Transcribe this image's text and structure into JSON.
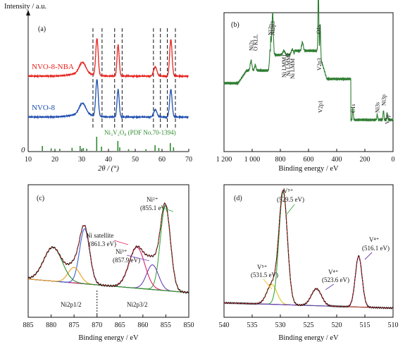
{
  "panels": {
    "a": {
      "label": "(a)",
      "ylabel": "Intensity / a.u.",
      "xlabel": "2θ / (°)",
      "zero_label": "0",
      "series_labels": [
        "NVO-8-NBA",
        "NVO-8"
      ],
      "ref_label": "Ni₃V₂O₈ (PDF No.70-1394)"
    },
    "b": {
      "label": "(b)",
      "xlabel": "Binding energy / eV",
      "peak_labels": [
        "Ni2s",
        "O KLL",
        "Ni2p",
        "Ni2p3",
        "Ni LMM1",
        "Ni LMM2",
        "Ni LMM",
        "O1s",
        "V2p3",
        "V2p1",
        "C1s",
        "Ni3s",
        "Ni3p",
        "V3p"
      ]
    },
    "c": {
      "label": "(c)",
      "xlabel": "Binding energy / eV",
      "annotations": [
        "Ni²⁺",
        "(855.1 eV)",
        "Ni satellite",
        "(861.3 eV)",
        "Ni³⁺",
        "(857.9 eV)",
        "Ni2p1/2",
        "Ni2p3/2"
      ]
    },
    "d": {
      "label": "(d)",
      "xlabel": "Binding energy / eV",
      "annotations": [
        "V⁵⁺",
        "(529.5 eV)",
        "V⁵⁺",
        "(531.5 eV)",
        "V⁴⁺",
        "(523.6 eV)",
        "V⁴⁺",
        "(516.1 eV)"
      ]
    }
  },
  "chart_data": [
    {
      "type": "line",
      "panel": "a",
      "xlabel": "2θ / (°)",
      "ylabel": "Intensity / a.u.",
      "xlim": [
        10,
        70
      ],
      "xticks": [
        10,
        20,
        30,
        40,
        50,
        60,
        70
      ],
      "peaks_2theta": [
        30.3,
        35.7,
        43.6,
        57.5,
        63.3
      ],
      "dashed_lines_2theta": [
        34.2,
        37.6,
        42.3,
        45.1,
        56.8,
        59.4,
        62.0,
        65.0
      ],
      "series": [
        {
          "name": "NVO-8-NBA",
          "color": "#e8231f",
          "peak_heights": [
            0.3,
            1.0,
            0.85,
            0.25,
            1.0
          ]
        },
        {
          "name": "NVO-8",
          "color": "#1f4eb0",
          "peak_heights": [
            0.3,
            1.0,
            0.75,
            0.2,
            0.75
          ]
        }
      ],
      "reference_sticks": {
        "name": "Ni₃V₂O₈ (PDF No.70-1394)",
        "color": "#2e8b2e",
        "x": [
          15.3,
          18.6,
          21.8,
          26.4,
          29.4,
          30.6,
          31.9,
          35.6,
          37.4,
          43.5,
          44.2,
          47.5,
          54.0,
          57.4,
          58.8,
          63.1,
          64.3
        ],
        "h": [
          0.35,
          0.18,
          0.15,
          0.22,
          0.35,
          0.2,
          0.15,
          1.0,
          0.3,
          0.7,
          0.25,
          0.12,
          0.12,
          0.4,
          0.2,
          0.55,
          0.25
        ]
      }
    },
    {
      "type": "line",
      "panel": "b",
      "xlabel": "Binding energy / eV",
      "xlim": [
        1200,
        0
      ],
      "xticks": [
        1200,
        1000,
        800,
        600,
        400,
        200,
        0
      ],
      "xtick_labels": [
        "1 200",
        "1 000",
        "800",
        "600",
        "400",
        "200",
        "0"
      ],
      "color": "#2e7d32",
      "peaks_eV": [
        1008,
        978,
        872,
        855,
        775,
        715,
        643,
        530,
        524,
        517,
        285,
        112,
        68,
        42
      ]
    },
    {
      "type": "line",
      "panel": "c",
      "xlabel": "Binding energy / eV",
      "xlim": [
        885,
        850
      ],
      "xticks": [
        885,
        880,
        875,
        870,
        865,
        860,
        855,
        850
      ],
      "peaks_eV": {
        "Ni2+": 855.1,
        "Ni3+": 857.9,
        "Ni satellite": 861.3,
        "2p1/2 main": 872.7,
        "2p1/2 Ni3+": 875.0,
        "2p1/2 satellite": 879.5
      },
      "divider_eV": 870
    },
    {
      "type": "line",
      "panel": "d",
      "xlabel": "Binding energy / eV",
      "xlim": [
        540,
        510
      ],
      "xticks": [
        540,
        535,
        530,
        525,
        520,
        515,
        510
      ],
      "peaks_eV": {
        "V5+ (O 1s region)": 531.5,
        "V5+": 529.5,
        "V4+ (2p1/2)": 523.6,
        "V4+": 516.1
      }
    }
  ]
}
